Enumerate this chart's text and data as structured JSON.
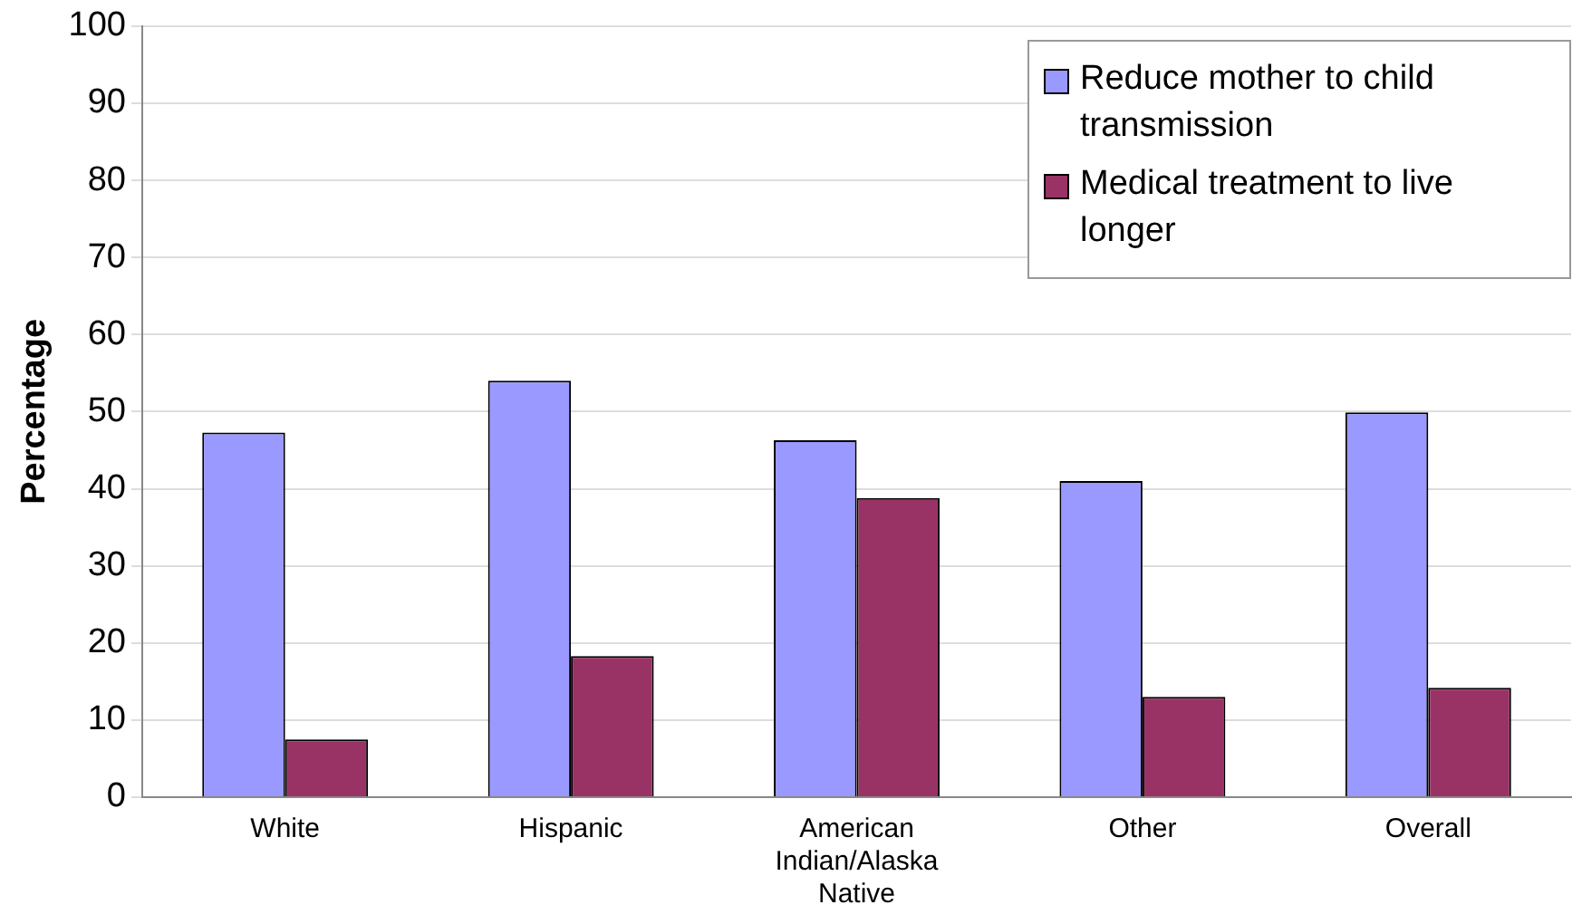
{
  "chart_data": {
    "type": "bar",
    "ylabel": "Percentage",
    "categories": [
      "White",
      "Hispanic",
      "American Indian/Alaska Native",
      "Other",
      "Overall"
    ],
    "series": [
      {
        "name": "Reduce mother to child transmission",
        "color": "#9999ff",
        "values": [
          47.3,
          54,
          46.3,
          41,
          49.9
        ]
      },
      {
        "name": "Medical treatment to live longer",
        "color": "#993366",
        "values": [
          7.5,
          18.3,
          38.8,
          13,
          14.2
        ]
      }
    ],
    "ylim": [
      0,
      100
    ],
    "yticks": [
      0,
      10,
      20,
      30,
      40,
      50,
      60,
      70,
      80,
      90,
      100
    ],
    "grid": "y",
    "legend": "top right"
  }
}
